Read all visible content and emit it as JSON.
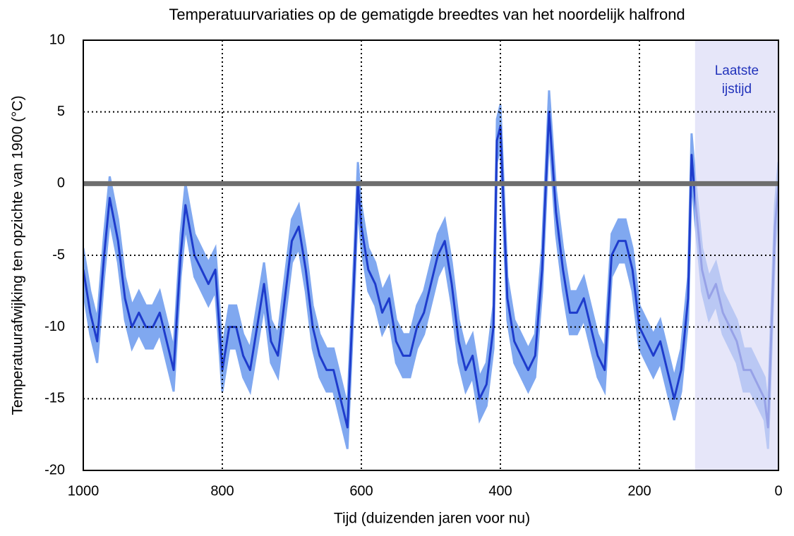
{
  "chart_data": {
    "type": "line",
    "title": "Temperatuurvariaties op de gematigde breedtes van het noordelijk halfrond",
    "xlabel": "Tijd (duizenden jaren voor nu)",
    "ylabel": "Temperatuurafwijking ten opzichte van 1900 (°C)",
    "xlim": [
      1000,
      0
    ],
    "ylim": [
      -20,
      10
    ],
    "xticks": [
      1000,
      800,
      600,
      400,
      200,
      0
    ],
    "yticks": [
      10,
      5,
      0,
      -5,
      -10,
      -15,
      -20
    ],
    "grid": true,
    "reference_line": {
      "value": 0,
      "color": "#6e6e6e"
    },
    "shaded_region": {
      "x_range": [
        120,
        0
      ],
      "color": "#d8d8f6",
      "label_lines": [
        "Laatste",
        "ijstijd"
      ],
      "label_color": "#2233bb"
    },
    "x": [
      1000,
      990,
      980,
      970,
      962,
      950,
      940,
      930,
      920,
      910,
      900,
      890,
      880,
      870,
      860,
      853,
      840,
      830,
      820,
      810,
      800,
      790,
      780,
      770,
      760,
      750,
      740,
      730,
      720,
      710,
      700,
      690,
      680,
      670,
      660,
      650,
      640,
      630,
      620,
      610,
      605,
      600,
      590,
      580,
      570,
      560,
      550,
      540,
      530,
      520,
      510,
      500,
      490,
      480,
      470,
      460,
      450,
      440,
      430,
      420,
      410,
      405,
      400,
      390,
      380,
      370,
      360,
      350,
      340,
      330,
      320,
      310,
      300,
      290,
      280,
      270,
      260,
      250,
      240,
      230,
      220,
      210,
      200,
      190,
      180,
      170,
      160,
      150,
      140,
      130,
      125,
      120,
      110,
      100,
      90,
      80,
      70,
      60,
      50,
      40,
      30,
      20,
      15,
      10,
      5,
      0
    ],
    "series": [
      {
        "color": "#1e3ccc",
        "band_color": "#80a8f0",
        "error": 1.5,
        "values": [
          -6,
          -9,
          -11,
          -5,
          -1,
          -4,
          -8,
          -10,
          -9,
          -10,
          -10,
          -9,
          -11,
          -13,
          -5,
          -1.5,
          -5,
          -6,
          -7,
          -6,
          -13,
          -10,
          -10,
          -12,
          -13,
          -10,
          -7,
          -11,
          -12,
          -8,
          -4,
          -3,
          -6,
          -10,
          -12,
          -13,
          -13,
          -15,
          -17,
          -6,
          0,
          -3,
          -6,
          -7,
          -9,
          -8,
          -11,
          -12,
          -12,
          -10,
          -9,
          -7,
          -5,
          -4,
          -7,
          -11,
          -13,
          -12,
          -15,
          -14,
          -10,
          3,
          4,
          -8,
          -11,
          -12,
          -13,
          -12,
          -6,
          5,
          -2,
          -6,
          -9,
          -9,
          -8,
          -10,
          -12,
          -13,
          -5,
          -4,
          -4,
          -6,
          -10,
          -11,
          -12,
          -11,
          -13,
          -15,
          -13,
          -8,
          2,
          -1,
          -6,
          -8,
          -7,
          -9,
          -10,
          -11,
          -13,
          -13,
          -14,
          -15,
          -17,
          -10,
          -3,
          0
        ]
      }
    ]
  }
}
